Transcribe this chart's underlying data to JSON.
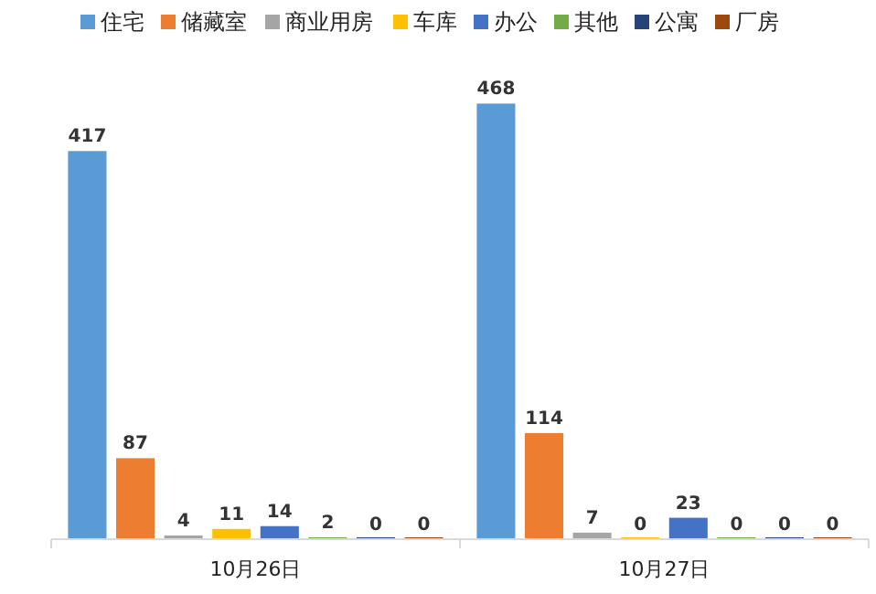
{
  "chart_data": {
    "type": "bar",
    "categories": [
      "10月26日",
      "10月27日"
    ],
    "series": [
      {
        "name": "住宅",
        "color": "#5b9bd5",
        "values": [
          417,
          468
        ]
      },
      {
        "name": "储藏室",
        "color": "#ed7d31",
        "values": [
          87,
          114
        ]
      },
      {
        "name": "商业用房",
        "color": "#a5a5a5",
        "values": [
          4,
          7
        ]
      },
      {
        "name": "车库",
        "color": "#ffc000",
        "values": [
          11,
          0
        ]
      },
      {
        "name": "办公",
        "color": "#4472c4",
        "values": [
          14,
          23
        ]
      },
      {
        "name": "其他",
        "color": "#70ad47",
        "values": [
          2,
          0
        ]
      },
      {
        "name": "公寓",
        "color": "#264478",
        "values": [
          0,
          0
        ]
      },
      {
        "name": "厂房",
        "color": "#9e480e",
        "values": [
          0,
          0
        ]
      }
    ],
    "data_labels": true,
    "legend": "top",
    "grid": false
  }
}
